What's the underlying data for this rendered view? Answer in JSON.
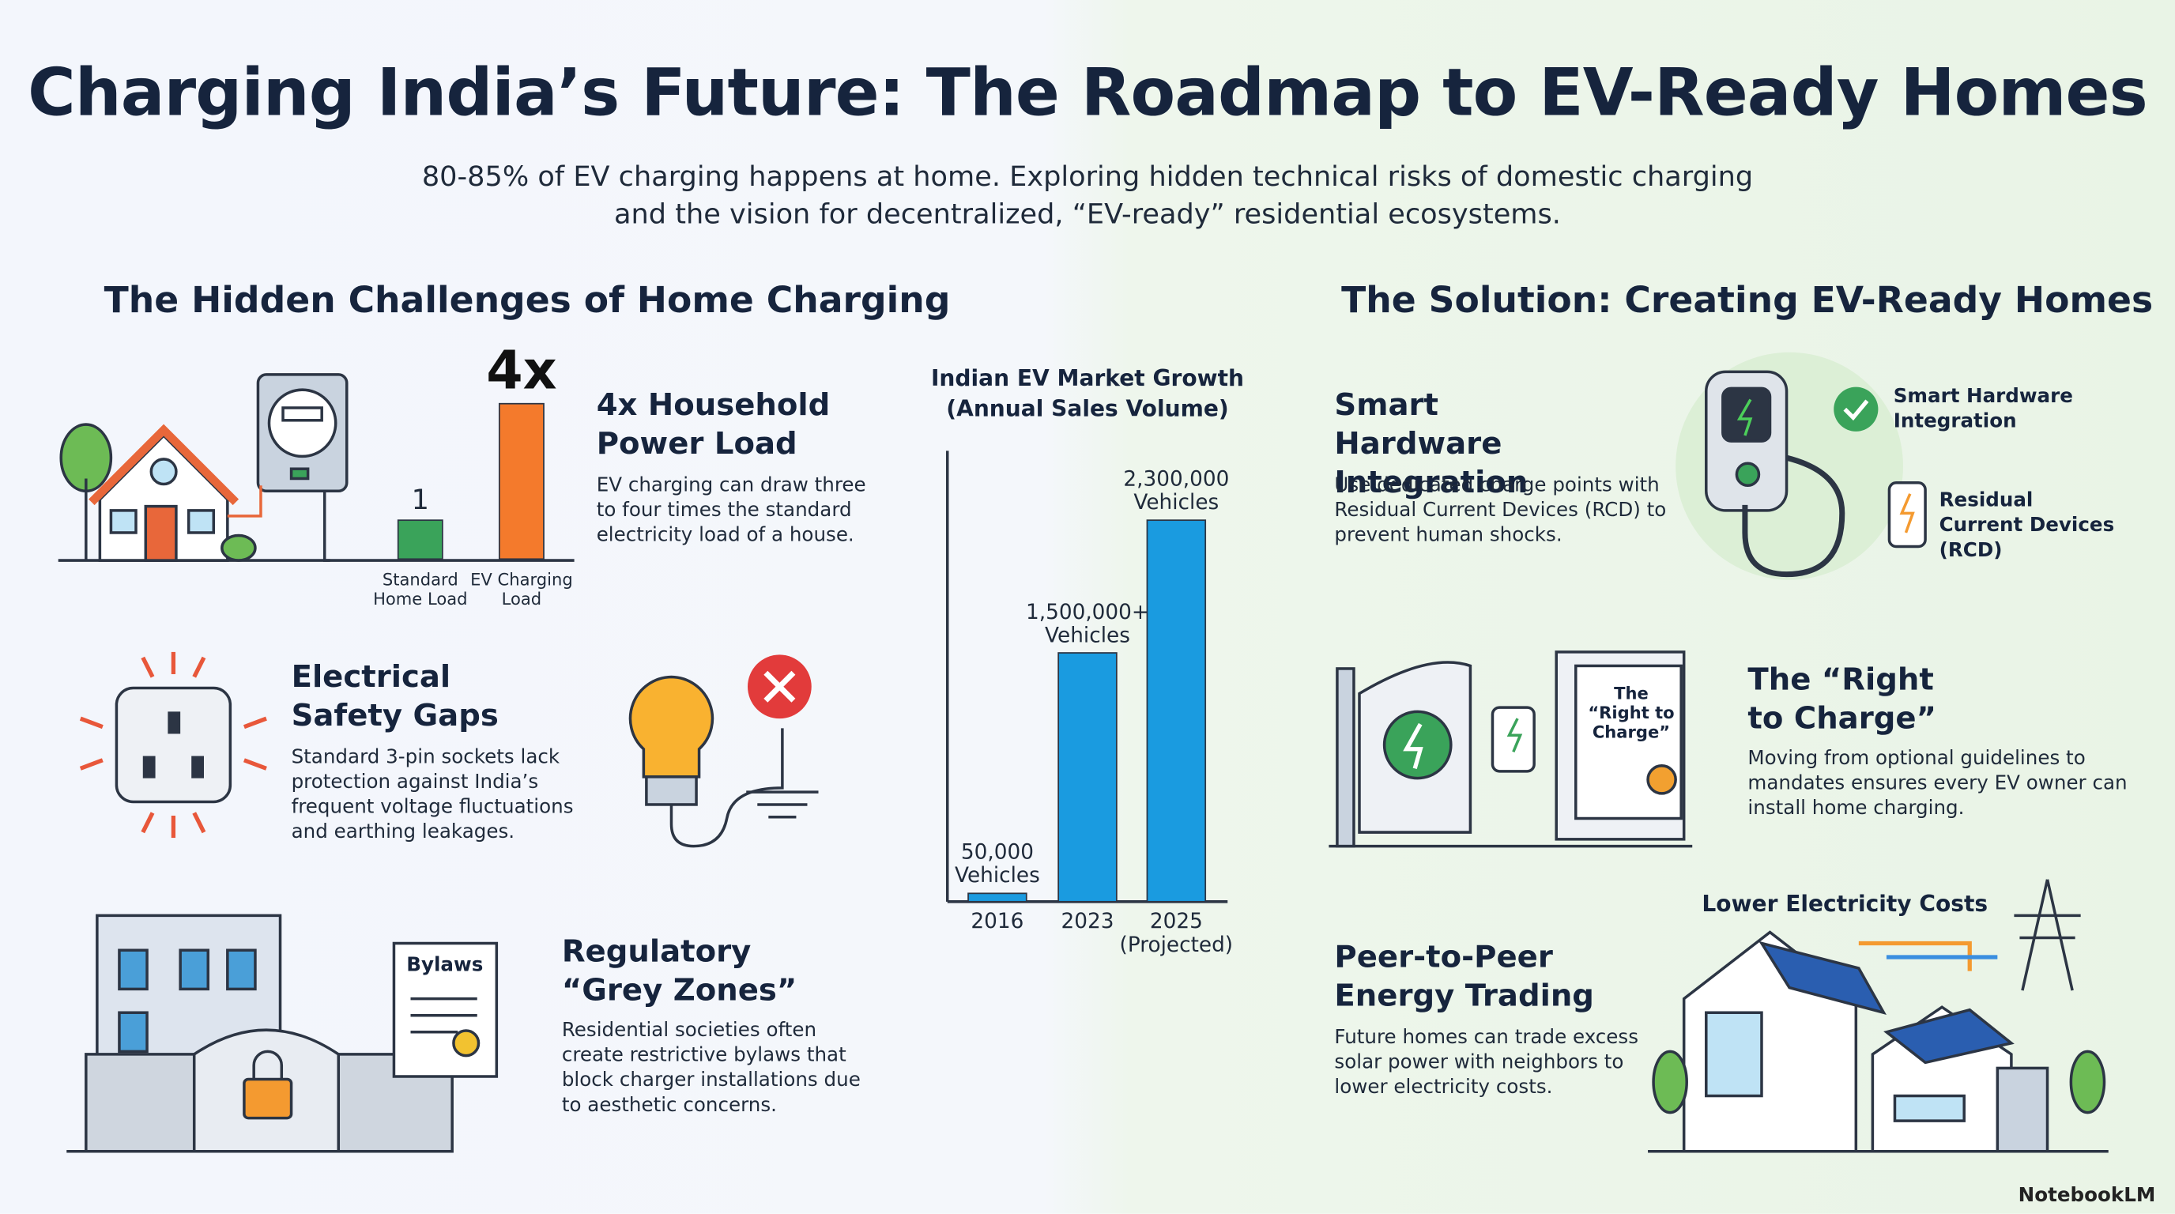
{
  "header": {
    "title": "Charging India’s Future: The Roadmap to EV-Ready Homes",
    "subtitle": "80-85% of EV charging happens at home. Exploring hidden technical risks of domestic charging and the vision for decentralized, “EV-ready” residential ecosystems."
  },
  "challenges": {
    "heading": "The Hidden Challenges of Home Charging",
    "items": [
      {
        "title": "4x Household Power Load",
        "text": "EV charging can draw three to four times the standard electricity load of a house."
      },
      {
        "title": "Electrical Safety Gaps",
        "text": "Standard 3-pin sockets lack protection against India’s frequent voltage fluctuations and earthing leakages."
      },
      {
        "title": "Regulatory “Grey Zones”",
        "text": "Residential societies often create restrictive bylaws that block charger installations due to aesthetic concerns."
      }
    ]
  },
  "solution": {
    "heading": "The Solution: Creating EV-Ready Homes",
    "items": [
      {
        "title": "Smart Hardware Integration",
        "text": "Use dedicated charge points with Residual Current Devices (RCD) to prevent human shocks."
      },
      {
        "title": "The “Right to Charge”",
        "text": "Moving from optional guidelines to mandates ensures every EV owner can install home charging."
      },
      {
        "title": "Peer-to-Peer Energy Trading",
        "text": "Future homes can trade excess solar power with neighbors to lower electricity costs."
      }
    ]
  },
  "chart_data": [
    {
      "type": "bar",
      "categories": [
        "Standard Home Load",
        "EV Charging Load"
      ],
      "values": [
        1,
        4
      ],
      "value_labels": [
        "1",
        "4x"
      ],
      "colors": [
        "#3aa35a",
        "#f47a2c"
      ]
    },
    {
      "type": "bar",
      "title": "Indian EV Market Growth (Annual Sales Volume)",
      "categories": [
        "2016",
        "2023",
        "2025"
      ],
      "projection_note": "(Projected)",
      "values": [
        50000,
        1500000,
        2300000
      ],
      "value_labels": [
        "50,000 Vehicles",
        "1,500,000+ Vehicles",
        "2,300,000 Vehicles"
      ],
      "color": "#1a9be0"
    }
  ],
  "illustrations": {
    "bylaws": "Bylaws",
    "right_to_charge_doc": "The “Right to Charge”",
    "smart_hardware": "Smart Hardware Integration",
    "rcd": "Residual Current Devices (RCD)",
    "lower_costs": "Lower Electricity Costs"
  },
  "footer": {
    "brand": "NotebookLM"
  }
}
